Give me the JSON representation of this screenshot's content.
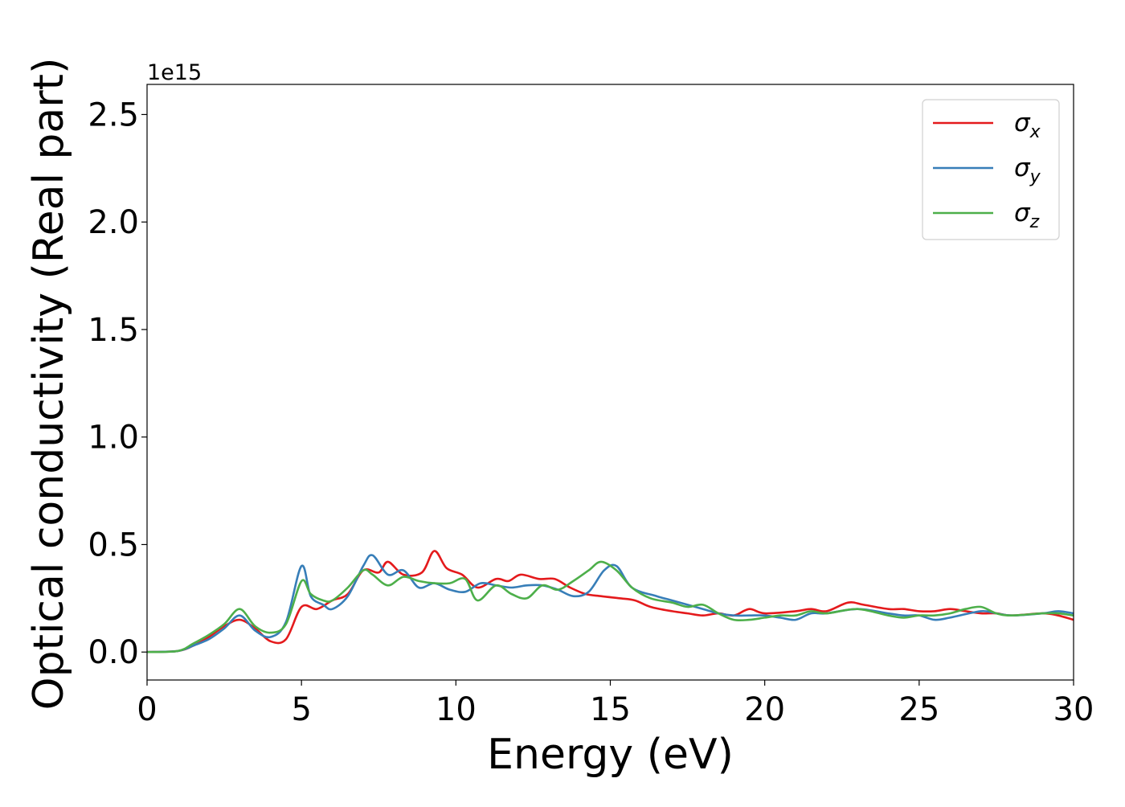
{
  "chart_data": {
    "type": "line",
    "xlabel": "Energy (eV)",
    "ylabel": "Optical conductivity (Real part)",
    "y_offset_label": "1e15",
    "xlim": [
      0,
      30
    ],
    "ylim": [
      -0.13,
      2.64
    ],
    "x_ticks": [
      0,
      5,
      10,
      15,
      20,
      25,
      30
    ],
    "y_ticks": [
      0.0,
      0.5,
      1.0,
      1.5,
      2.0,
      2.5
    ],
    "x_tick_labels": [
      "0",
      "5",
      "10",
      "15",
      "20",
      "25",
      "30"
    ],
    "y_tick_labels": [
      "0.0",
      "0.5",
      "1.0",
      "1.5",
      "2.0",
      "2.5"
    ],
    "grid": false,
    "legend_position": "top-right",
    "series": [
      {
        "name": "σ_x",
        "legend_symbol": "σ",
        "legend_subscript": "x",
        "color": "#e41a1c",
        "x": [
          0,
          1.0,
          1.5,
          2.0,
          2.5,
          3.0,
          3.5,
          4.0,
          4.5,
          5.0,
          5.5,
          6.0,
          6.5,
          7.0,
          7.5,
          7.8,
          8.3,
          8.9,
          9.3,
          9.7,
          10.2,
          10.7,
          11.3,
          11.7,
          12.1,
          12.7,
          13.2,
          13.7,
          14.2,
          14.7,
          15.3,
          15.8,
          16.3,
          17.0,
          17.5,
          18.0,
          18.5,
          19.0,
          19.5,
          20.0,
          21.0,
          21.5,
          22.0,
          22.7,
          23.2,
          24.0,
          24.5,
          25.0,
          25.5,
          26.0,
          26.5,
          27.0,
          27.5,
          28.0,
          29.0,
          29.5,
          30.0
        ],
        "y": [
          0.0,
          0.005,
          0.03,
          0.07,
          0.12,
          0.15,
          0.11,
          0.05,
          0.06,
          0.21,
          0.2,
          0.24,
          0.27,
          0.38,
          0.37,
          0.42,
          0.36,
          0.37,
          0.47,
          0.39,
          0.36,
          0.3,
          0.34,
          0.33,
          0.36,
          0.34,
          0.34,
          0.3,
          0.27,
          0.26,
          0.25,
          0.24,
          0.21,
          0.19,
          0.18,
          0.17,
          0.18,
          0.17,
          0.2,
          0.18,
          0.19,
          0.2,
          0.19,
          0.23,
          0.22,
          0.2,
          0.2,
          0.19,
          0.19,
          0.2,
          0.19,
          0.18,
          0.18,
          0.17,
          0.18,
          0.17,
          0.15
        ]
      },
      {
        "name": "σ_y",
        "legend_symbol": "σ",
        "legend_subscript": "y",
        "color": "#377eb8",
        "x": [
          0,
          1.0,
          1.5,
          2.0,
          2.5,
          3.0,
          3.5,
          4.0,
          4.5,
          5.0,
          5.3,
          5.7,
          6.0,
          6.5,
          7.0,
          7.3,
          7.8,
          8.3,
          8.8,
          9.3,
          9.8,
          10.3,
          10.8,
          11.3,
          11.8,
          12.3,
          12.8,
          13.3,
          13.8,
          14.3,
          14.8,
          15.2,
          15.7,
          16.5,
          17.0,
          17.5,
          18.0,
          18.5,
          19.0,
          19.5,
          20.0,
          20.5,
          21.0,
          21.5,
          22.0,
          23.0,
          24.0,
          24.5,
          25.0,
          25.5,
          26.0,
          27.0,
          27.5,
          28.0,
          29.0,
          29.5,
          30.0
        ],
        "y": [
          0.0,
          0.005,
          0.03,
          0.06,
          0.11,
          0.17,
          0.1,
          0.07,
          0.14,
          0.4,
          0.26,
          0.22,
          0.2,
          0.26,
          0.4,
          0.45,
          0.36,
          0.38,
          0.3,
          0.32,
          0.29,
          0.28,
          0.32,
          0.31,
          0.3,
          0.31,
          0.31,
          0.29,
          0.26,
          0.28,
          0.38,
          0.4,
          0.3,
          0.26,
          0.24,
          0.22,
          0.2,
          0.18,
          0.17,
          0.17,
          0.17,
          0.16,
          0.15,
          0.18,
          0.18,
          0.2,
          0.18,
          0.17,
          0.17,
          0.15,
          0.16,
          0.19,
          0.18,
          0.17,
          0.18,
          0.19,
          0.18
        ]
      },
      {
        "name": "σ_z",
        "legend_symbol": "σ",
        "legend_subscript": "z",
        "color": "#4daf4a",
        "x": [
          0,
          1.0,
          1.5,
          2.0,
          2.5,
          3.0,
          3.5,
          4.0,
          4.5,
          5.0,
          5.3,
          5.7,
          6.0,
          6.5,
          7.0,
          7.3,
          7.8,
          8.3,
          8.8,
          9.3,
          9.8,
          10.3,
          10.7,
          11.3,
          11.8,
          12.3,
          12.8,
          13.3,
          13.8,
          14.3,
          14.7,
          15.2,
          15.7,
          16.3,
          17.0,
          17.5,
          18.0,
          18.5,
          19.0,
          19.5,
          20.0,
          20.5,
          21.0,
          21.5,
          22.0,
          23.0,
          24.0,
          24.5,
          25.0,
          25.5,
          26.0,
          26.5,
          27.0,
          27.5,
          28.0,
          29.0,
          29.5,
          30.0
        ],
        "y": [
          0.0,
          0.005,
          0.04,
          0.08,
          0.13,
          0.2,
          0.12,
          0.09,
          0.13,
          0.33,
          0.27,
          0.24,
          0.24,
          0.3,
          0.38,
          0.36,
          0.31,
          0.35,
          0.33,
          0.32,
          0.32,
          0.34,
          0.24,
          0.31,
          0.27,
          0.25,
          0.31,
          0.29,
          0.33,
          0.38,
          0.42,
          0.38,
          0.3,
          0.25,
          0.23,
          0.21,
          0.22,
          0.18,
          0.15,
          0.15,
          0.16,
          0.17,
          0.17,
          0.19,
          0.18,
          0.2,
          0.17,
          0.16,
          0.17,
          0.17,
          0.18,
          0.2,
          0.21,
          0.18,
          0.17,
          0.18,
          0.18,
          0.17
        ]
      }
    ]
  }
}
